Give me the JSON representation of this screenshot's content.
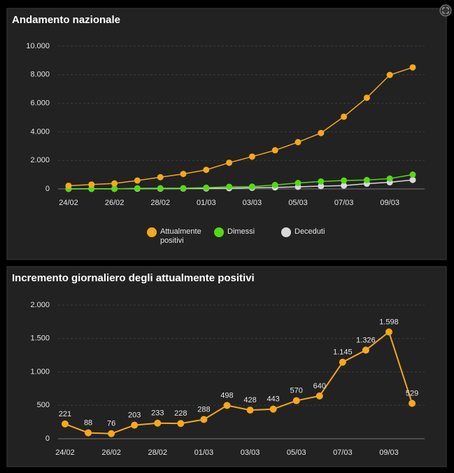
{
  "chart_data": [
    {
      "type": "line",
      "title": "Andamento nazionale",
      "categories": [
        "24/02",
        null,
        "26/02",
        null,
        "28/02",
        null,
        "01/03",
        null,
        "03/03",
        null,
        "05/03",
        null,
        "07/03",
        null,
        "09/03",
        null
      ],
      "series": [
        {
          "name": "Attualmente positivi",
          "color": "#f5a81c",
          "values": [
            221,
            309,
            385,
            588,
            821,
            1049,
            1337,
            1835,
            2263,
            2706,
            3276,
            3916,
            5061,
            6387,
            7985,
            8514
          ]
        },
        {
          "name": "Dimessi",
          "color": "#55d915",
          "values": [
            1,
            1,
            3,
            45,
            46,
            50,
            83,
            149,
            160,
            276,
            414,
            523,
            589,
            622,
            724,
            1004
          ]
        },
        {
          "name": "Deceduti",
          "color": "#d9d9d9",
          "values": [
            7,
            10,
            12,
            17,
            21,
            29,
            34,
            52,
            79,
            107,
            148,
            197,
            233,
            366,
            463,
            631
          ]
        }
      ],
      "ylim": [
        0,
        10000
      ],
      "yticks": [
        0,
        {
          "value": 2000,
          "label": "2.000"
        },
        {
          "value": 4000,
          "label": "4.000"
        },
        {
          "value": 6000,
          "label": "6.000"
        },
        {
          "value": 8000,
          "label": "8.000"
        },
        {
          "value": 10000,
          "label": "10.000"
        }
      ],
      "grid": true
    },
    {
      "type": "line",
      "title": "Incremento giornaliero degli attualmente positivi",
      "categories": [
        "24/02",
        null,
        "26/02",
        null,
        "28/02",
        null,
        "01/03",
        null,
        "03/03",
        null,
        "05/03",
        null,
        "07/03",
        null,
        "09/03",
        null
      ],
      "values": [
        221,
        88,
        76,
        203,
        233,
        228,
        288,
        498,
        428,
        443,
        570,
        640,
        1145,
        1326,
        1598,
        529
      ],
      "value_labels": [
        "221",
        "88",
        "76",
        "203",
        "233",
        "228",
        "288",
        "498",
        "428",
        "443",
        "570",
        "640",
        "1.145",
        "1.326",
        "1.598",
        "529"
      ],
      "color": "#f5a81c",
      "ylim": [
        0,
        2000
      ],
      "yticks": [
        0,
        500,
        {
          "value": 1000,
          "label": "1.000"
        },
        {
          "value": 1500,
          "label": "1.500"
        },
        {
          "value": 2000,
          "label": "2.000"
        }
      ],
      "grid": true
    }
  ]
}
